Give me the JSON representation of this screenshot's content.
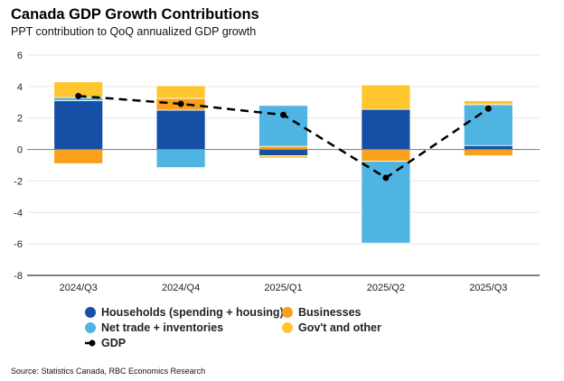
{
  "chart_data": {
    "type": "bar",
    "stacked": true,
    "title": "Canada GDP Growth Contributions",
    "subtitle": "PPT contribution to QoQ annualized GDP growth",
    "categories": [
      "2024/Q3",
      "2024/Q4",
      "2025/Q1",
      "2025/Q2",
      "2025/Q3"
    ],
    "ylim": [
      -8,
      6
    ],
    "yticks": [
      6,
      4,
      2,
      0,
      -2,
      -4,
      -6,
      -8
    ],
    "grid": true,
    "legend_placement": "bottom",
    "series": [
      {
        "name": "Households (spending + housing)",
        "color": "#1550A6",
        "values": [
          3.1,
          2.5,
          -0.4,
          2.55,
          0.25
        ]
      },
      {
        "name": "Businesses",
        "color": "#F9A11B",
        "values": [
          -0.9,
          0.75,
          0.2,
          -0.75,
          -0.4
        ]
      },
      {
        "name": "Net trade + inventories",
        "color": "#4FB4E1",
        "values": [
          0.2,
          -1.15,
          2.6,
          -5.2,
          2.6
        ]
      },
      {
        "name": "Gov't and other",
        "color": "#FFC52F",
        "values": [
          1.0,
          0.8,
          -0.15,
          1.55,
          0.25
        ]
      }
    ],
    "line": {
      "name": "GDP",
      "type": "line",
      "style": "dashed",
      "color": "#000000",
      "values": [
        3.4,
        2.9,
        2.2,
        -1.8,
        2.6
      ]
    }
  },
  "source": "Source: Statistics Canada, RBC Economics Research"
}
